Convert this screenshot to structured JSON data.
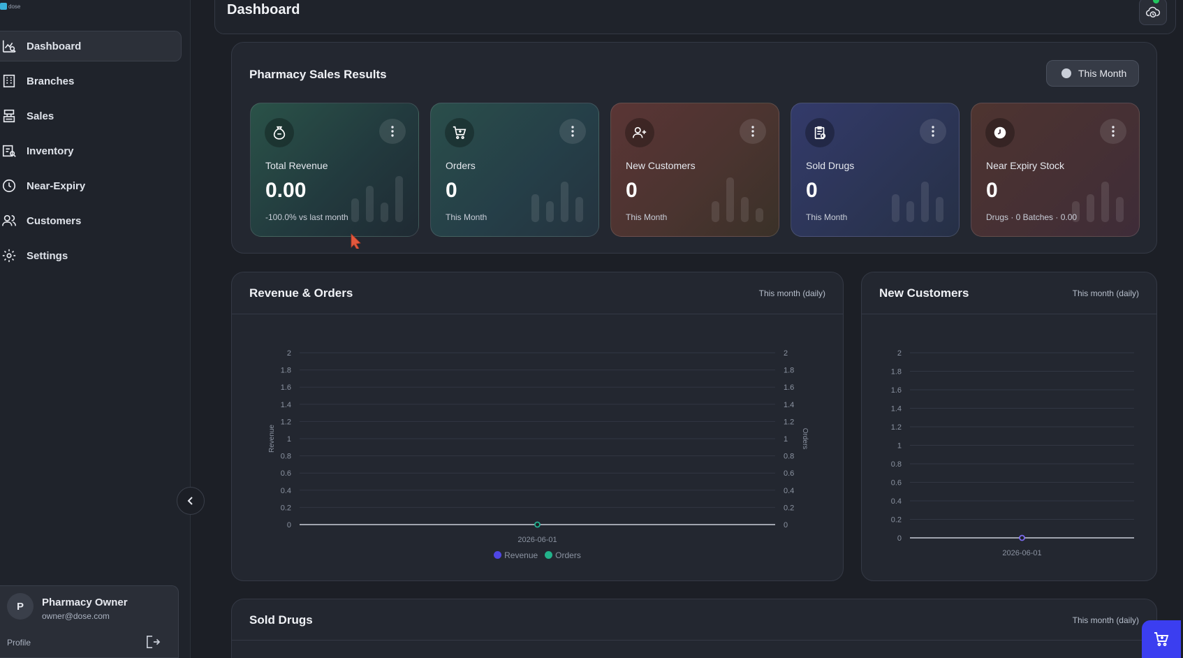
{
  "app": {
    "logo_text": "dose"
  },
  "sidebar": {
    "items": [
      {
        "label": "Dashboard",
        "icon": "chart-search-icon",
        "active": true
      },
      {
        "label": "Branches",
        "icon": "building-icon"
      },
      {
        "label": "Sales",
        "icon": "register-icon"
      },
      {
        "label": "Inventory",
        "icon": "inventory-icon"
      },
      {
        "label": "Near-Expiry",
        "icon": "clock-icon"
      },
      {
        "label": "Customers",
        "icon": "users-icon"
      },
      {
        "label": "Settings",
        "icon": "gear-icon"
      }
    ],
    "profile": {
      "initial": "P",
      "name": "Pharmacy Owner",
      "email": "owner@dose.com",
      "link": "Profile"
    }
  },
  "header": {
    "title": "Dashboard"
  },
  "sales": {
    "title": "Pharmacy Sales Results",
    "period": "This Month",
    "cards": [
      {
        "label": "Total Revenue",
        "value": "0.00",
        "sub": "-100.0% vs last month",
        "icon": "money-bag-icon"
      },
      {
        "label": "Orders",
        "value": "0",
        "sub": "This Month",
        "icon": "cart-icon"
      },
      {
        "label": "New Customers",
        "value": "0",
        "sub": "This Month",
        "icon": "user-add-icon"
      },
      {
        "label": "Sold Drugs",
        "value": "0",
        "sub": "This Month",
        "icon": "clipboard-icon"
      },
      {
        "label": "Near Expiry Stock",
        "value": "0",
        "sub": "Drugs · 0 Batches · 0.00",
        "icon": "clock-icon"
      }
    ]
  },
  "revenue_orders": {
    "title": "Revenue & Orders",
    "meta": "This month (daily)",
    "legend": [
      "Revenue",
      "Orders"
    ]
  },
  "new_customers": {
    "title": "New Customers",
    "meta": "This month (daily)"
  },
  "sold_drugs": {
    "title": "Sold Drugs",
    "meta": "This month (daily)"
  },
  "chart_data": [
    {
      "type": "line",
      "x": [
        "2026-06-01"
      ],
      "series": [
        {
          "name": "Revenue",
          "values": [
            0
          ],
          "axis": "left"
        },
        {
          "name": "Orders",
          "values": [
            0
          ],
          "axis": "right"
        }
      ],
      "ylabel": "Revenue",
      "y2label": "Orders",
      "ylim": [
        0,
        2
      ],
      "y2lim": [
        0,
        2
      ],
      "yticks": [
        "0",
        "0.2",
        "0.4",
        "0.6",
        "0.8",
        "1",
        "1.2",
        "1.4",
        "1.6",
        "1.8",
        "2"
      ],
      "grid": true,
      "legend": "bottom",
      "colors": {
        "Revenue": "#4f46e5",
        "Orders": "#22b28a"
      }
    },
    {
      "type": "line",
      "x": [
        "2026-06-01"
      ],
      "series": [
        {
          "values": [
            0
          ]
        }
      ],
      "ylim": [
        0,
        2
      ],
      "yticks": [
        "0",
        "0.2",
        "0.4",
        "0.6",
        "0.8",
        "1",
        "1.2",
        "1.4",
        "1.6",
        "1.8",
        "2"
      ],
      "grid": true,
      "colors": {
        "line": "#7c6cf0"
      }
    }
  ]
}
